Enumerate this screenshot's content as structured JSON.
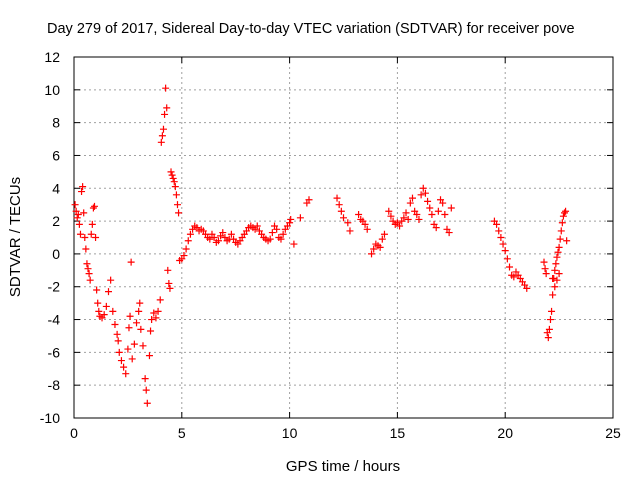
{
  "chart_data": {
    "type": "scatter",
    "title": "Day 279 of 2017, Sidereal Day-to-day VTEC variation (SDTVAR) for receiver pove",
    "xlabel": "GPS time / hours",
    "ylabel": "SDTVAR / TECUs",
    "xlim": [
      0,
      25
    ],
    "ylim": [
      -10,
      12
    ],
    "xticks": [
      0,
      5,
      10,
      15,
      20,
      25
    ],
    "yticks": [
      -10,
      -8,
      -6,
      -4,
      -2,
      0,
      2,
      4,
      6,
      8,
      10,
      12
    ],
    "xtick_labels": [
      "0",
      "5",
      "10",
      "15",
      "20",
      "25"
    ],
    "ytick_labels": [
      "-10",
      "-8",
      "-6",
      "-4",
      "-2",
      "0",
      "2",
      "4",
      "6",
      "8",
      "10",
      "12"
    ],
    "grid": true,
    "marker": "+",
    "color": "#ff0000",
    "series": [
      {
        "name": "SDTVAR",
        "points": [
          [
            0.05,
            3.0
          ],
          [
            0.1,
            2.6
          ],
          [
            0.15,
            2.2
          ],
          [
            0.2,
            2.4
          ],
          [
            0.25,
            1.8
          ],
          [
            0.3,
            1.2
          ],
          [
            0.35,
            3.8
          ],
          [
            0.4,
            4.1
          ],
          [
            0.45,
            2.5
          ],
          [
            0.5,
            1.0
          ],
          [
            0.55,
            0.3
          ],
          [
            0.6,
            -0.6
          ],
          [
            0.65,
            -0.9
          ],
          [
            0.7,
            -1.2
          ],
          [
            0.75,
            -1.6
          ],
          [
            0.8,
            1.2
          ],
          [
            0.85,
            1.8
          ],
          [
            0.9,
            2.8
          ],
          [
            0.95,
            2.9
          ],
          [
            1.0,
            1.0
          ],
          [
            1.05,
            -2.2
          ],
          [
            1.1,
            -3.0
          ],
          [
            1.15,
            -3.5
          ],
          [
            1.2,
            -3.8
          ],
          [
            1.3,
            -3.9
          ],
          [
            1.4,
            -3.7
          ],
          [
            1.5,
            -3.2
          ],
          [
            1.6,
            -2.3
          ],
          [
            1.7,
            -1.6
          ],
          [
            1.8,
            -3.5
          ],
          [
            1.9,
            -4.3
          ],
          [
            2.0,
            -4.9
          ],
          [
            2.05,
            -5.3
          ],
          [
            2.1,
            -6.0
          ],
          [
            2.2,
            -6.5
          ],
          [
            2.3,
            -6.9
          ],
          [
            2.4,
            -7.3
          ],
          [
            2.5,
            -5.8
          ],
          [
            2.55,
            -4.5
          ],
          [
            2.6,
            -3.8
          ],
          [
            2.65,
            -0.5
          ],
          [
            2.7,
            -6.4
          ],
          [
            2.8,
            -5.5
          ],
          [
            2.9,
            -4.2
          ],
          [
            3.0,
            -3.5
          ],
          [
            3.05,
            -3.0
          ],
          [
            3.1,
            -4.6
          ],
          [
            3.2,
            -5.6
          ],
          [
            3.3,
            -7.6
          ],
          [
            3.35,
            -8.3
          ],
          [
            3.4,
            -9.1
          ],
          [
            3.5,
            -6.2
          ],
          [
            3.55,
            -4.7
          ],
          [
            3.6,
            -4.0
          ],
          [
            3.7,
            -3.6
          ],
          [
            3.8,
            -3.9
          ],
          [
            3.9,
            -3.5
          ],
          [
            4.0,
            -2.8
          ],
          [
            4.05,
            6.8
          ],
          [
            4.1,
            7.2
          ],
          [
            4.15,
            7.6
          ],
          [
            4.2,
            8.5
          ],
          [
            4.25,
            10.1
          ],
          [
            4.3,
            8.9
          ],
          [
            4.35,
            -1.0
          ],
          [
            4.4,
            -1.8
          ],
          [
            4.45,
            -2.1
          ],
          [
            4.5,
            5.0
          ],
          [
            4.55,
            4.8
          ],
          [
            4.6,
            4.6
          ],
          [
            4.65,
            4.4
          ],
          [
            4.7,
            4.1
          ],
          [
            4.75,
            3.6
          ],
          [
            4.8,
            3.0
          ],
          [
            4.85,
            2.5
          ],
          [
            4.9,
            -0.4
          ],
          [
            5.0,
            -0.3
          ],
          [
            5.1,
            -0.1
          ],
          [
            5.2,
            0.3
          ],
          [
            5.3,
            0.8
          ],
          [
            5.4,
            1.2
          ],
          [
            5.5,
            1.5
          ],
          [
            5.6,
            1.7
          ],
          [
            5.7,
            1.6
          ],
          [
            5.8,
            1.4
          ],
          [
            5.9,
            1.5
          ],
          [
            6.0,
            1.4
          ],
          [
            6.1,
            1.2
          ],
          [
            6.2,
            1.0
          ],
          [
            6.3,
            0.9
          ],
          [
            6.4,
            1.2
          ],
          [
            6.5,
            1.0
          ],
          [
            6.6,
            0.7
          ],
          [
            6.7,
            0.8
          ],
          [
            6.8,
            1.1
          ],
          [
            6.9,
            1.3
          ],
          [
            7.0,
            1.0
          ],
          [
            7.1,
            0.8
          ],
          [
            7.2,
            0.9
          ],
          [
            7.3,
            1.2
          ],
          [
            7.4,
            0.9
          ],
          [
            7.5,
            0.7
          ],
          [
            7.6,
            0.6
          ],
          [
            7.7,
            0.8
          ],
          [
            7.8,
            1.0
          ],
          [
            7.9,
            1.2
          ],
          [
            8.0,
            1.4
          ],
          [
            8.1,
            1.6
          ],
          [
            8.2,
            1.7
          ],
          [
            8.3,
            1.6
          ],
          [
            8.4,
            1.5
          ],
          [
            8.5,
            1.7
          ],
          [
            8.6,
            1.4
          ],
          [
            8.7,
            1.2
          ],
          [
            8.8,
            1.0
          ],
          [
            8.9,
            0.9
          ],
          [
            9.0,
            0.8
          ],
          [
            9.1,
            0.9
          ],
          [
            9.2,
            1.3
          ],
          [
            9.3,
            1.7
          ],
          [
            9.4,
            1.5
          ],
          [
            9.5,
            1.0
          ],
          [
            9.6,
            0.9
          ],
          [
            9.7,
            1.2
          ],
          [
            9.8,
            1.5
          ],
          [
            9.9,
            1.7
          ],
          [
            10.0,
            1.9
          ],
          [
            10.05,
            2.1
          ],
          [
            10.2,
            0.6
          ],
          [
            10.5,
            2.2
          ],
          [
            10.8,
            3.1
          ],
          [
            10.9,
            3.3
          ],
          [
            12.2,
            3.4
          ],
          [
            12.3,
            3.0
          ],
          [
            12.4,
            2.6
          ],
          [
            12.5,
            2.2
          ],
          [
            12.7,
            1.9
          ],
          [
            12.8,
            1.4
          ],
          [
            13.2,
            2.4
          ],
          [
            13.3,
            2.1
          ],
          [
            13.4,
            2.0
          ],
          [
            13.5,
            1.8
          ],
          [
            13.6,
            1.5
          ],
          [
            13.8,
            0.0
          ],
          [
            13.9,
            0.3
          ],
          [
            14.0,
            0.6
          ],
          [
            14.1,
            0.5
          ],
          [
            14.2,
            0.4
          ],
          [
            14.3,
            0.9
          ],
          [
            14.4,
            1.2
          ],
          [
            14.6,
            2.6
          ],
          [
            14.7,
            2.3
          ],
          [
            14.8,
            2.0
          ],
          [
            14.9,
            1.8
          ],
          [
            15.0,
            1.9
          ],
          [
            15.1,
            1.7
          ],
          [
            15.2,
            2.0
          ],
          [
            15.3,
            2.2
          ],
          [
            15.4,
            2.5
          ],
          [
            15.5,
            2.1
          ],
          [
            15.6,
            3.1
          ],
          [
            15.7,
            3.4
          ],
          [
            15.8,
            2.6
          ],
          [
            15.9,
            2.4
          ],
          [
            16.0,
            2.1
          ],
          [
            16.1,
            3.6
          ],
          [
            16.2,
            4.0
          ],
          [
            16.3,
            3.7
          ],
          [
            16.4,
            3.2
          ],
          [
            16.5,
            2.8
          ],
          [
            16.6,
            2.4
          ],
          [
            16.7,
            1.8
          ],
          [
            16.8,
            1.6
          ],
          [
            16.9,
            2.6
          ],
          [
            17.0,
            3.3
          ],
          [
            17.1,
            3.1
          ],
          [
            17.2,
            2.4
          ],
          [
            17.3,
            1.5
          ],
          [
            17.4,
            1.3
          ],
          [
            17.5,
            2.8
          ],
          [
            19.5,
            2.0
          ],
          [
            19.6,
            1.8
          ],
          [
            19.7,
            1.4
          ],
          [
            19.8,
            1.0
          ],
          [
            19.9,
            0.6
          ],
          [
            20.0,
            0.2
          ],
          [
            20.1,
            -0.3
          ],
          [
            20.2,
            -0.8
          ],
          [
            20.3,
            -1.3
          ],
          [
            20.4,
            -1.4
          ],
          [
            20.5,
            -1.1
          ],
          [
            20.6,
            -1.3
          ],
          [
            20.7,
            -1.5
          ],
          [
            20.8,
            -1.7
          ],
          [
            20.9,
            -1.9
          ],
          [
            21.0,
            -2.1
          ],
          [
            21.8,
            -0.5
          ],
          [
            21.85,
            -0.9
          ],
          [
            21.9,
            -1.2
          ],
          [
            21.95,
            -4.8
          ],
          [
            22.0,
            -5.1
          ],
          [
            22.05,
            -4.6
          ],
          [
            22.1,
            -4.0
          ],
          [
            22.15,
            -3.5
          ],
          [
            22.2,
            -2.5
          ],
          [
            22.25,
            -1.5
          ],
          [
            22.3,
            -1.0
          ],
          [
            22.35,
            -0.6
          ],
          [
            22.4,
            -0.2
          ],
          [
            22.45,
            0.1
          ],
          [
            22.5,
            0.4
          ],
          [
            22.55,
            0.9
          ],
          [
            22.6,
            1.4
          ],
          [
            22.65,
            1.9
          ],
          [
            22.7,
            2.3
          ],
          [
            22.75,
            2.5
          ],
          [
            22.8,
            2.6
          ],
          [
            22.85,
            0.8
          ],
          [
            22.5,
            -1.2
          ],
          [
            22.4,
            -1.6
          ],
          [
            22.3,
            -2.0
          ],
          [
            22.2,
            -1.5
          ]
        ]
      }
    ]
  }
}
